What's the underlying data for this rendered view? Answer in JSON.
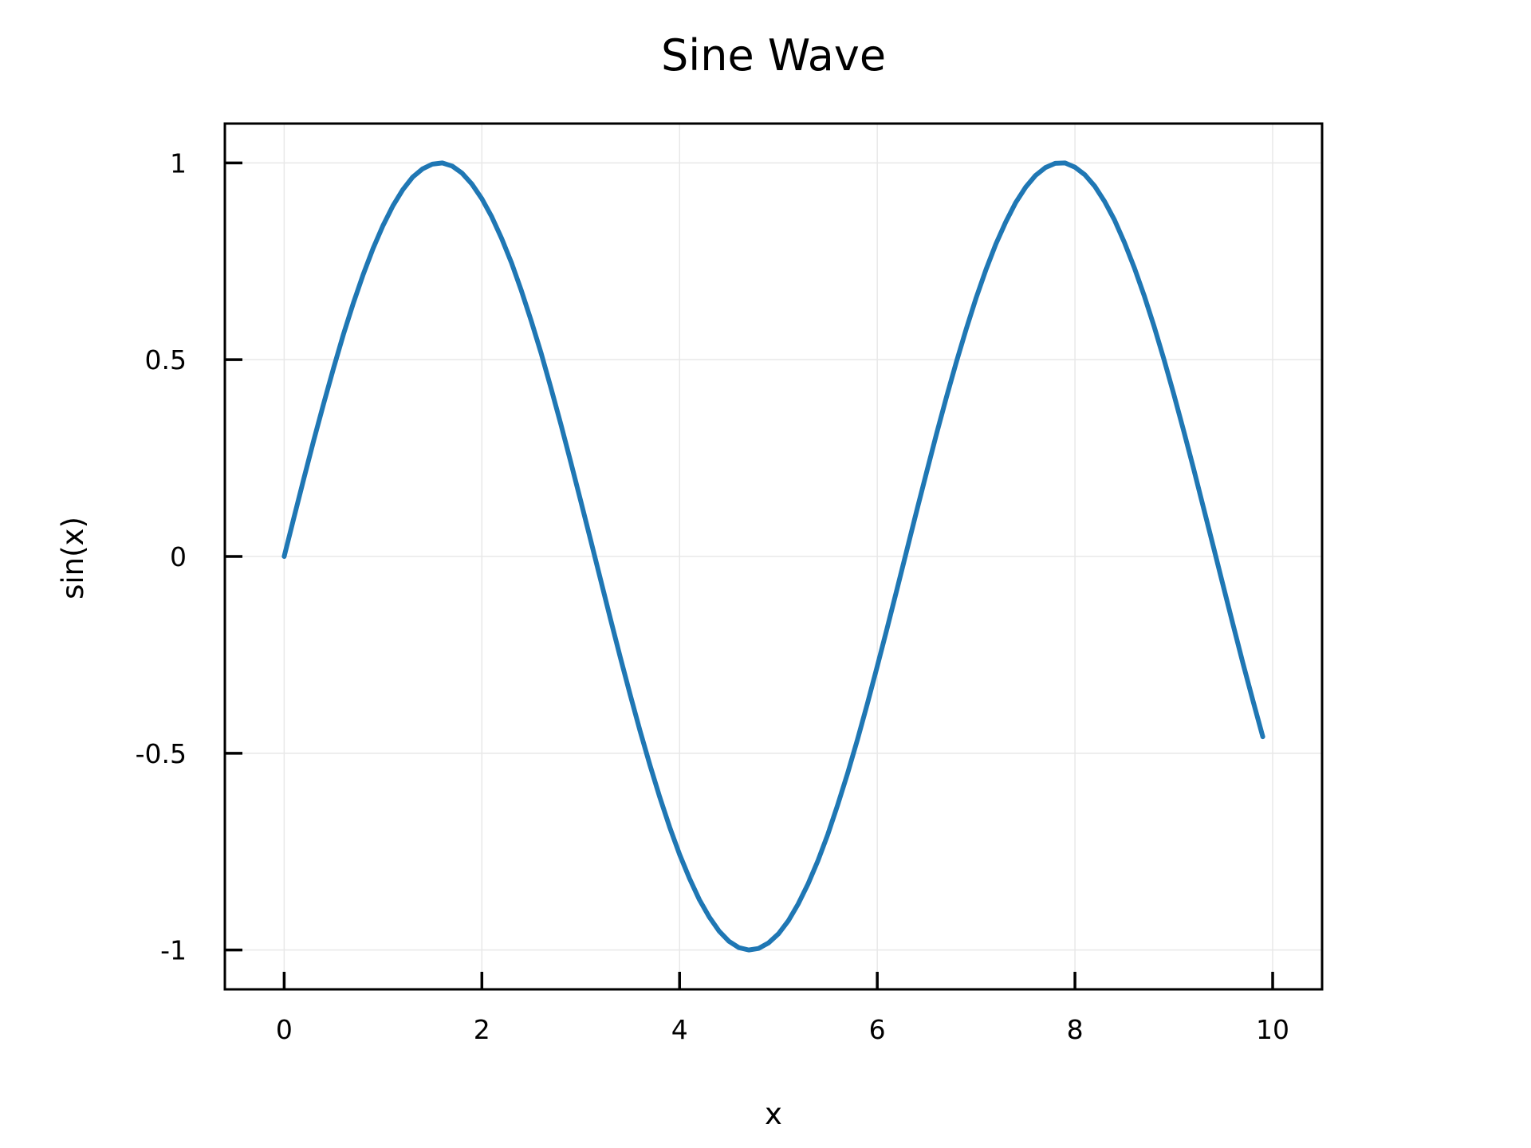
{
  "chart_data": {
    "type": "line",
    "title": "Sine Wave",
    "xlabel": "x",
    "ylabel": "sin(x)",
    "xlim": [
      -0.6,
      10.5
    ],
    "ylim": [
      -1.1,
      1.1
    ],
    "x_ticks": [
      0,
      2,
      4,
      6,
      8,
      10
    ],
    "x_tick_labels": [
      "0",
      "2",
      "4",
      "6",
      "8",
      "10"
    ],
    "y_ticks": [
      1,
      0.5,
      0,
      -0.5,
      -1
    ],
    "y_tick_labels": [
      "1",
      "0.5",
      "0",
      "-0.5",
      "-1"
    ],
    "grid": true,
    "legend": "none",
    "series_color": "#1f77b4",
    "series": [
      {
        "x": [
          0,
          0.1,
          0.2,
          0.3,
          0.4,
          0.5,
          0.6,
          0.7,
          0.8,
          0.9,
          1.0,
          1.1,
          1.2,
          1.3,
          1.4,
          1.5,
          1.6,
          1.7,
          1.8,
          1.9,
          2.0,
          2.1,
          2.2,
          2.3,
          2.4,
          2.5,
          2.6,
          2.7,
          2.8,
          2.9,
          3.0,
          3.1,
          3.2,
          3.3,
          3.4,
          3.5,
          3.6,
          3.7,
          3.8,
          3.9,
          4.0,
          4.1,
          4.2,
          4.3,
          4.4,
          4.5,
          4.6,
          4.7,
          4.8,
          4.9,
          5.0,
          5.1,
          5.2,
          5.3,
          5.4,
          5.5,
          5.6,
          5.7,
          5.8,
          5.9,
          6.0,
          6.1,
          6.2,
          6.3,
          6.4,
          6.5,
          6.6,
          6.7,
          6.8,
          6.9,
          7.0,
          7.1,
          7.2,
          7.3,
          7.4,
          7.5,
          7.6,
          7.7,
          7.8,
          7.9,
          8.0,
          8.1,
          8.2,
          8.3,
          8.4,
          8.5,
          8.6,
          8.7,
          8.8,
          8.9,
          9.0,
          9.1,
          9.2,
          9.3,
          9.4,
          9.5,
          9.6,
          9.7,
          9.8,
          9.9
        ],
        "y": [
          0.0,
          0.1,
          0.199,
          0.296,
          0.389,
          0.479,
          0.565,
          0.644,
          0.717,
          0.783,
          0.841,
          0.891,
          0.932,
          0.964,
          0.985,
          0.997,
          1.0,
          0.992,
          0.974,
          0.946,
          0.909,
          0.863,
          0.808,
          0.746,
          0.675,
          0.598,
          0.516,
          0.427,
          0.335,
          0.239,
          0.141,
          0.042,
          -0.058,
          -0.158,
          -0.256,
          -0.351,
          -0.443,
          -0.53,
          -0.612,
          -0.688,
          -0.757,
          -0.818,
          -0.872,
          -0.916,
          -0.952,
          -0.978,
          -0.994,
          -1.0,
          -0.996,
          -0.982,
          -0.959,
          -0.926,
          -0.883,
          -0.832,
          -0.773,
          -0.706,
          -0.631,
          -0.551,
          -0.465,
          -0.374,
          -0.279,
          -0.182,
          -0.083,
          0.017,
          0.117,
          0.215,
          0.312,
          0.405,
          0.494,
          0.578,
          0.657,
          0.729,
          0.794,
          0.85,
          0.899,
          0.938,
          0.968,
          0.988,
          0.999,
          1.0,
          0.989,
          0.97,
          0.941,
          0.902,
          0.855,
          0.798,
          0.734,
          0.663,
          0.585,
          0.501,
          0.412,
          0.319,
          0.223,
          0.124,
          0.025,
          -0.075,
          -0.174,
          -0.272,
          -0.366,
          -0.458
        ]
      }
    ]
  }
}
